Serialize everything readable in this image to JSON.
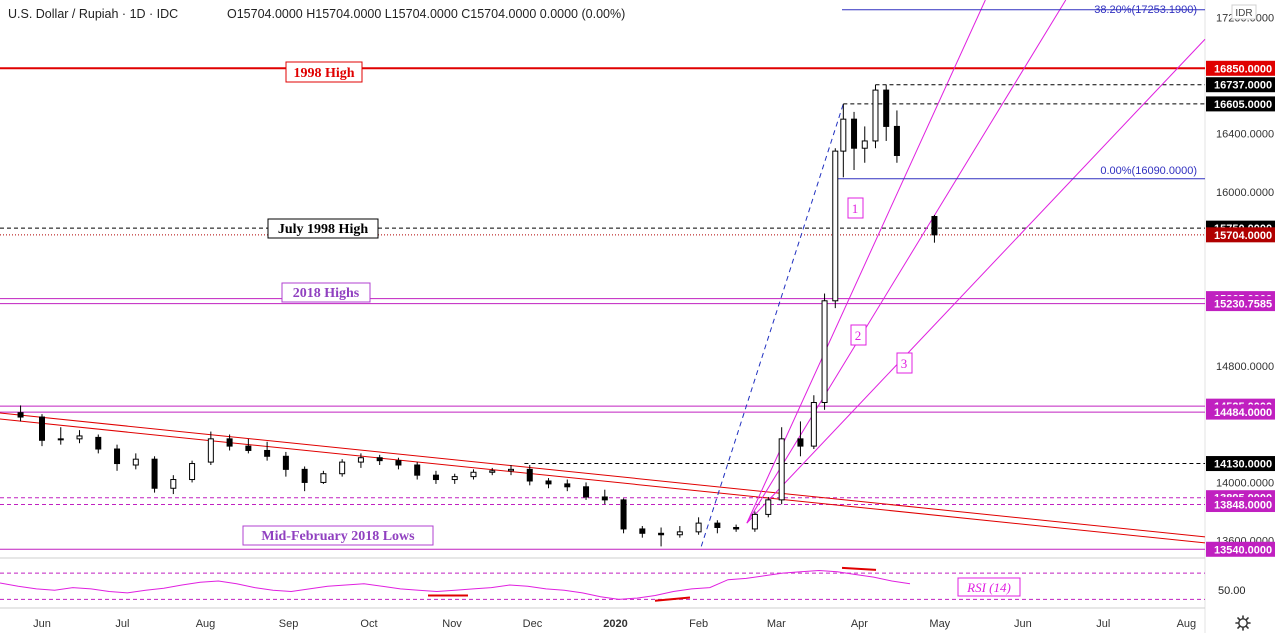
{
  "header": {
    "title": "U.S. Dollar / Rupiah · 1D · IDC",
    "ohlc": "O15704.0000  H15704.0000  L15704.0000  C15704.0000  0.0000 (0.00%)",
    "currency_badge": "IDR"
  },
  "chart_data": {
    "type": "candlestick",
    "symbol": "U.S. Dollar / Rupiah",
    "timeframe": "1D",
    "source": "IDC",
    "currency": "IDR",
    "price_axis": {
      "range": [
        13480,
        17320
      ],
      "ticks": [
        "17200.0000",
        "16400.0000",
        "16000.0000",
        "14800.0000",
        "14000.0000",
        "13600.0000"
      ],
      "tick_values": [
        17200,
        16400,
        16000,
        14800,
        14000,
        13600
      ]
    },
    "time_axis": {
      "ticks": [
        "Jun",
        "Jul",
        "Aug",
        "Sep",
        "Oct",
        "Nov",
        "Dec",
        "2020",
        "Feb",
        "Mar",
        "Apr",
        "May",
        "Jun",
        "Jul",
        "Aug"
      ],
      "tick_x_days": [
        0,
        30,
        61,
        92,
        122,
        153,
        183,
        214,
        245,
        274,
        305,
        335,
        366,
        396,
        427
      ]
    },
    "price_tags": [
      {
        "label": "16850.0000",
        "value": 16850,
        "color": "#e00000"
      },
      {
        "label": "16737.0000",
        "value": 16737,
        "color": "#000000"
      },
      {
        "label": "16605.0000",
        "value": 16605,
        "color": "#000000"
      },
      {
        "label": "15750.0000",
        "value": 15750,
        "color": "#000000"
      },
      {
        "label": "15704.0000",
        "value": 15704,
        "color": "#b00000"
      },
      {
        "label": "15265.0000",
        "value": 15265,
        "color": "#c020c0"
      },
      {
        "label": "15230.7585",
        "value": 15230.7585,
        "color": "#c020c0"
      },
      {
        "label": "14525.0000",
        "value": 14525,
        "color": "#c020c0"
      },
      {
        "label": "14484.0000",
        "value": 14484,
        "color": "#c020c0"
      },
      {
        "label": "14130.0000",
        "value": 14130,
        "color": "#000000"
      },
      {
        "label": "13895.0000",
        "value": 13895,
        "color": "#c020c0"
      },
      {
        "label": "13848.0000",
        "value": 13848,
        "color": "#c020c0"
      },
      {
        "label": "13540.0000",
        "value": 13540,
        "color": "#c020c0"
      }
    ],
    "levels": [
      {
        "name": "1998 High",
        "value": 16850,
        "color": "#e00000",
        "style": "solid"
      },
      {
        "name": "",
        "value": 16737,
        "color": "#000000",
        "style": "dashed"
      },
      {
        "name": "",
        "value": 16605,
        "color": "#000000",
        "style": "dashed"
      },
      {
        "name": "July 1998 High",
        "value": 15750,
        "color": "#000000",
        "style": "dashed"
      },
      {
        "name": "",
        "value": 15704,
        "color": "#b00000",
        "style": "dotted"
      },
      {
        "name": "2018 Highs",
        "value": 15265,
        "color": "#c020c0",
        "style": "solid"
      },
      {
        "name": "",
        "value": 15230.7585,
        "color": "#c020c0",
        "style": "solid"
      },
      {
        "name": "",
        "value": 14525,
        "color": "#c020c0",
        "style": "solid"
      },
      {
        "name": "",
        "value": 14484,
        "color": "#c020c0",
        "style": "solid"
      },
      {
        "name": "",
        "value": 14130,
        "color": "#000000",
        "style": "dashed"
      },
      {
        "name": "",
        "value": 13895,
        "color": "#c020c0",
        "style": "dashed"
      },
      {
        "name": "",
        "value": 13848,
        "color": "#c020c0",
        "style": "dashed"
      },
      {
        "name": "Mid-February 2018 Lows",
        "value": 13540,
        "color": "#c020c0",
        "style": "solid"
      }
    ],
    "fib_levels": [
      {
        "label": "38.20%(17253.1900)",
        "value": 17253.19
      },
      {
        "label": "0.00%(16090.0000)",
        "value": 16090
      }
    ],
    "fan_labels": [
      "1",
      "2",
      "3"
    ],
    "candles_weekly_approx": [
      {
        "day": -8,
        "o": 14480,
        "h": 14530,
        "l": 14420,
        "c": 14450
      },
      {
        "day": 0,
        "o": 14450,
        "h": 14470,
        "l": 14250,
        "c": 14290
      },
      {
        "day": 7,
        "o": 14300,
        "h": 14380,
        "l": 14260,
        "c": 14300
      },
      {
        "day": 14,
        "o": 14300,
        "h": 14360,
        "l": 14270,
        "c": 14320
      },
      {
        "day": 21,
        "o": 14310,
        "h": 14330,
        "l": 14200,
        "c": 14230
      },
      {
        "day": 28,
        "o": 14230,
        "h": 14260,
        "l": 14080,
        "c": 14130
      },
      {
        "day": 35,
        "o": 14120,
        "h": 14200,
        "l": 14090,
        "c": 14160
      },
      {
        "day": 42,
        "o": 14160,
        "h": 14180,
        "l": 13930,
        "c": 13960
      },
      {
        "day": 49,
        "o": 13960,
        "h": 14050,
        "l": 13920,
        "c": 14020
      },
      {
        "day": 56,
        "o": 14020,
        "h": 14150,
        "l": 14000,
        "c": 14130
      },
      {
        "day": 63,
        "o": 14140,
        "h": 14350,
        "l": 14120,
        "c": 14300
      },
      {
        "day": 70,
        "o": 14300,
        "h": 14330,
        "l": 14220,
        "c": 14250
      },
      {
        "day": 77,
        "o": 14250,
        "h": 14300,
        "l": 14200,
        "c": 14220
      },
      {
        "day": 84,
        "o": 14220,
        "h": 14280,
        "l": 14150,
        "c": 14180
      },
      {
        "day": 91,
        "o": 14180,
        "h": 14210,
        "l": 14040,
        "c": 14090
      },
      {
        "day": 98,
        "o": 14090,
        "h": 14110,
        "l": 13940,
        "c": 14000
      },
      {
        "day": 105,
        "o": 14000,
        "h": 14080,
        "l": 13990,
        "c": 14060
      },
      {
        "day": 112,
        "o": 14060,
        "h": 14160,
        "l": 14040,
        "c": 14140
      },
      {
        "day": 119,
        "o": 14140,
        "h": 14200,
        "l": 14100,
        "c": 14170
      },
      {
        "day": 126,
        "o": 14170,
        "h": 14190,
        "l": 14120,
        "c": 14150
      },
      {
        "day": 133,
        "o": 14150,
        "h": 14170,
        "l": 14090,
        "c": 14120
      },
      {
        "day": 140,
        "o": 14120,
        "h": 14140,
        "l": 14020,
        "c": 14050
      },
      {
        "day": 147,
        "o": 14050,
        "h": 14080,
        "l": 13990,
        "c": 14020
      },
      {
        "day": 154,
        "o": 14020,
        "h": 14060,
        "l": 13990,
        "c": 14040
      },
      {
        "day": 161,
        "o": 14040,
        "h": 14090,
        "l": 14020,
        "c": 14070
      },
      {
        "day": 168,
        "o": 14070,
        "h": 14100,
        "l": 14050,
        "c": 14080
      },
      {
        "day": 175,
        "o": 14080,
        "h": 14120,
        "l": 14050,
        "c": 14090
      },
      {
        "day": 182,
        "o": 14090,
        "h": 14120,
        "l": 13980,
        "c": 14010
      },
      {
        "day": 189,
        "o": 14010,
        "h": 14030,
        "l": 13960,
        "c": 13990
      },
      {
        "day": 196,
        "o": 13990,
        "h": 14020,
        "l": 13940,
        "c": 13970
      },
      {
        "day": 203,
        "o": 13970,
        "h": 14000,
        "l": 13880,
        "c": 13900
      },
      {
        "day": 210,
        "o": 13900,
        "h": 13950,
        "l": 13850,
        "c": 13880
      },
      {
        "day": 217,
        "o": 13880,
        "h": 13890,
        "l": 13650,
        "c": 13680
      },
      {
        "day": 224,
        "o": 13680,
        "h": 13700,
        "l": 13620,
        "c": 13650
      },
      {
        "day": 231,
        "o": 13650,
        "h": 13690,
        "l": 13560,
        "c": 13640
      },
      {
        "day": 238,
        "o": 13640,
        "h": 13700,
        "l": 13620,
        "c": 13660
      },
      {
        "day": 245,
        "o": 13660,
        "h": 13760,
        "l": 13640,
        "c": 13720
      },
      {
        "day": 252,
        "o": 13720,
        "h": 13740,
        "l": 13650,
        "c": 13690
      },
      {
        "day": 259,
        "o": 13690,
        "h": 13710,
        "l": 13660,
        "c": 13680
      },
      {
        "day": 266,
        "o": 13680,
        "h": 13800,
        "l": 13660,
        "c": 13780
      },
      {
        "day": 271,
        "o": 13780,
        "h": 13900,
        "l": 13760,
        "c": 13880
      },
      {
        "day": 276,
        "o": 13880,
        "h": 14380,
        "l": 13850,
        "c": 14300
      },
      {
        "day": 283,
        "o": 14300,
        "h": 14420,
        "l": 14180,
        "c": 14250
      },
      {
        "day": 288,
        "o": 14250,
        "h": 14600,
        "l": 14230,
        "c": 14550
      },
      {
        "day": 292,
        "o": 14550,
        "h": 15300,
        "l": 14500,
        "c": 15250
      },
      {
        "day": 296,
        "o": 15250,
        "h": 16300,
        "l": 15200,
        "c": 16280
      },
      {
        "day": 299,
        "o": 16280,
        "h": 16605,
        "l": 16100,
        "c": 16500
      },
      {
        "day": 303,
        "o": 16500,
        "h": 16550,
        "l": 16150,
        "c": 16300
      },
      {
        "day": 307,
        "o": 16300,
        "h": 16450,
        "l": 16200,
        "c": 16350
      },
      {
        "day": 311,
        "o": 16350,
        "h": 16737,
        "l": 16300,
        "c": 16700
      },
      {
        "day": 315,
        "o": 16700,
        "h": 16737,
        "l": 16350,
        "c": 16450
      },
      {
        "day": 319,
        "o": 16450,
        "h": 16560,
        "l": 16200,
        "c": 16250
      },
      {
        "day": 333,
        "o": 15830,
        "h": 15840,
        "l": 15650,
        "c": 15704
      }
    ]
  },
  "annotations": {
    "high_1998": "1998 High",
    "july_1998_high": "July 1998 High",
    "highs_2018": "2018 Highs",
    "mid_feb_2018_lows": "Mid-February 2018 Lows",
    "fib_382": "38.20%(17253.1900)",
    "fib_0": "0.00%(16090.0000)",
    "fan_1": "1",
    "fan_2": "2",
    "fan_3": "3"
  },
  "rsi": {
    "label": "RSI (14)",
    "level_label": "50.00",
    "values_approx": [
      55,
      50,
      46,
      44,
      48,
      46,
      42,
      40,
      44,
      47,
      52,
      56,
      58,
      54,
      48,
      44,
      42,
      46,
      50,
      52,
      54,
      50,
      46,
      44,
      42,
      44,
      46,
      48,
      52,
      50,
      46,
      44,
      40,
      34,
      30,
      32,
      36,
      42,
      46,
      48,
      60,
      62,
      66,
      70,
      72,
      74,
      72,
      68,
      64,
      58,
      54
    ],
    "colors": {
      "line": "#e020e0",
      "bands": "#c020c0"
    }
  },
  "colors": {
    "candle": "#000000",
    "resistance_red": "#e00000",
    "support_magenta": "#c020c0",
    "fan": "#e020e0",
    "fib": "#3030c0",
    "trendline": "#e00000"
  }
}
